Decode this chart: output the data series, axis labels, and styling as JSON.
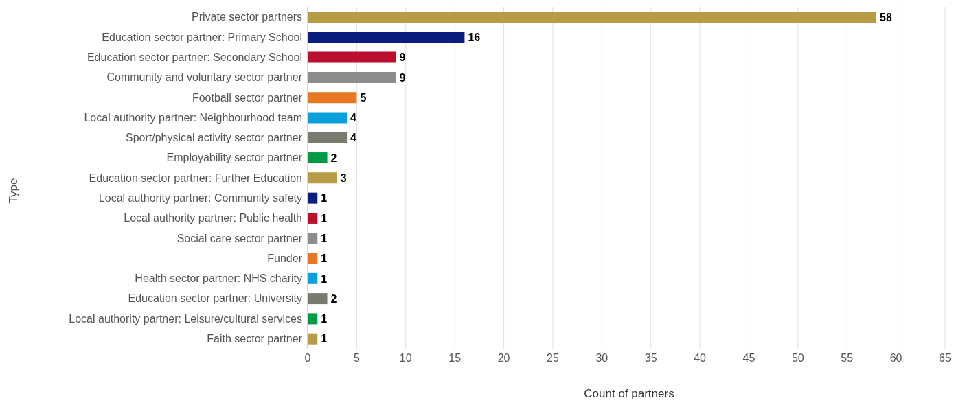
{
  "chart_data": {
    "type": "bar",
    "orientation": "horizontal",
    "xlabel": "Count of partners",
    "ylabel": "Type",
    "categories": [
      "Private sector partners",
      "Education sector partner: Primary School",
      "Education sector partner: Secondary School",
      "Community and voluntary sector partner",
      "Football sector partner",
      "Local authority partner: Neighbourhood team",
      "Sport/physical activity sector partner",
      "Employability sector partner",
      "Education sector partner: Further Education",
      "Local authority partner: Community safety",
      "Local authority partner: Public health",
      "Social care sector partner",
      "Funder",
      "Health sector partner: NHS charity",
      "Education sector partner: University",
      "Local authority partner: Leisure/cultural services",
      "Faith sector partner"
    ],
    "values": [
      58,
      16,
      9,
      9,
      5,
      4,
      4,
      2,
      3,
      1,
      1,
      1,
      1,
      1,
      2,
      1,
      1
    ],
    "colors": [
      "#b89b45",
      "#0a1f7d",
      "#bb0f30",
      "#8c8c8c",
      "#e87722",
      "#0aa0dc",
      "#7a7b6e",
      "#009a44",
      "#b89b45",
      "#0a1f7d",
      "#bb0f30",
      "#8c8c8c",
      "#e87722",
      "#0aa0dc",
      "#7a7b6e",
      "#009a44",
      "#b89b45"
    ],
    "xlim": [
      0,
      65
    ],
    "xticks": [
      0,
      5,
      10,
      15,
      20,
      25,
      30,
      35,
      40,
      45,
      50,
      55,
      60,
      65
    ],
    "grid": "x",
    "data_labels": true,
    "legend": false
  }
}
